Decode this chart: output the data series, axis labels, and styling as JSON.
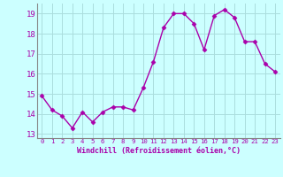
{
  "x": [
    0,
    1,
    2,
    3,
    4,
    5,
    6,
    7,
    8,
    9,
    10,
    11,
    12,
    13,
    14,
    15,
    16,
    17,
    18,
    19,
    20,
    21,
    22,
    23
  ],
  "y": [
    14.9,
    14.2,
    13.9,
    13.3,
    14.1,
    13.6,
    14.1,
    14.35,
    14.35,
    14.2,
    15.3,
    16.6,
    18.3,
    19.0,
    19.0,
    18.5,
    17.2,
    18.9,
    19.2,
    18.8,
    17.6,
    17.6,
    16.5,
    16.1
  ],
  "line_color": "#aa00aa",
  "marker": "D",
  "marker_size": 2.5,
  "bg_color": "#ccffff",
  "grid_color": "#aadddd",
  "xlabel": "Windchill (Refroidissement éolien,°C)",
  "xlabel_color": "#aa00aa",
  "tick_color": "#aa00aa",
  "ylabel_ticks": [
    13,
    14,
    15,
    16,
    17,
    18,
    19
  ],
  "xlim": [
    -0.5,
    23.5
  ],
  "ylim": [
    12.8,
    19.5
  ],
  "xticks": [
    0,
    1,
    2,
    3,
    4,
    5,
    6,
    7,
    8,
    9,
    10,
    11,
    12,
    13,
    14,
    15,
    16,
    17,
    18,
    19,
    20,
    21,
    22,
    23
  ]
}
